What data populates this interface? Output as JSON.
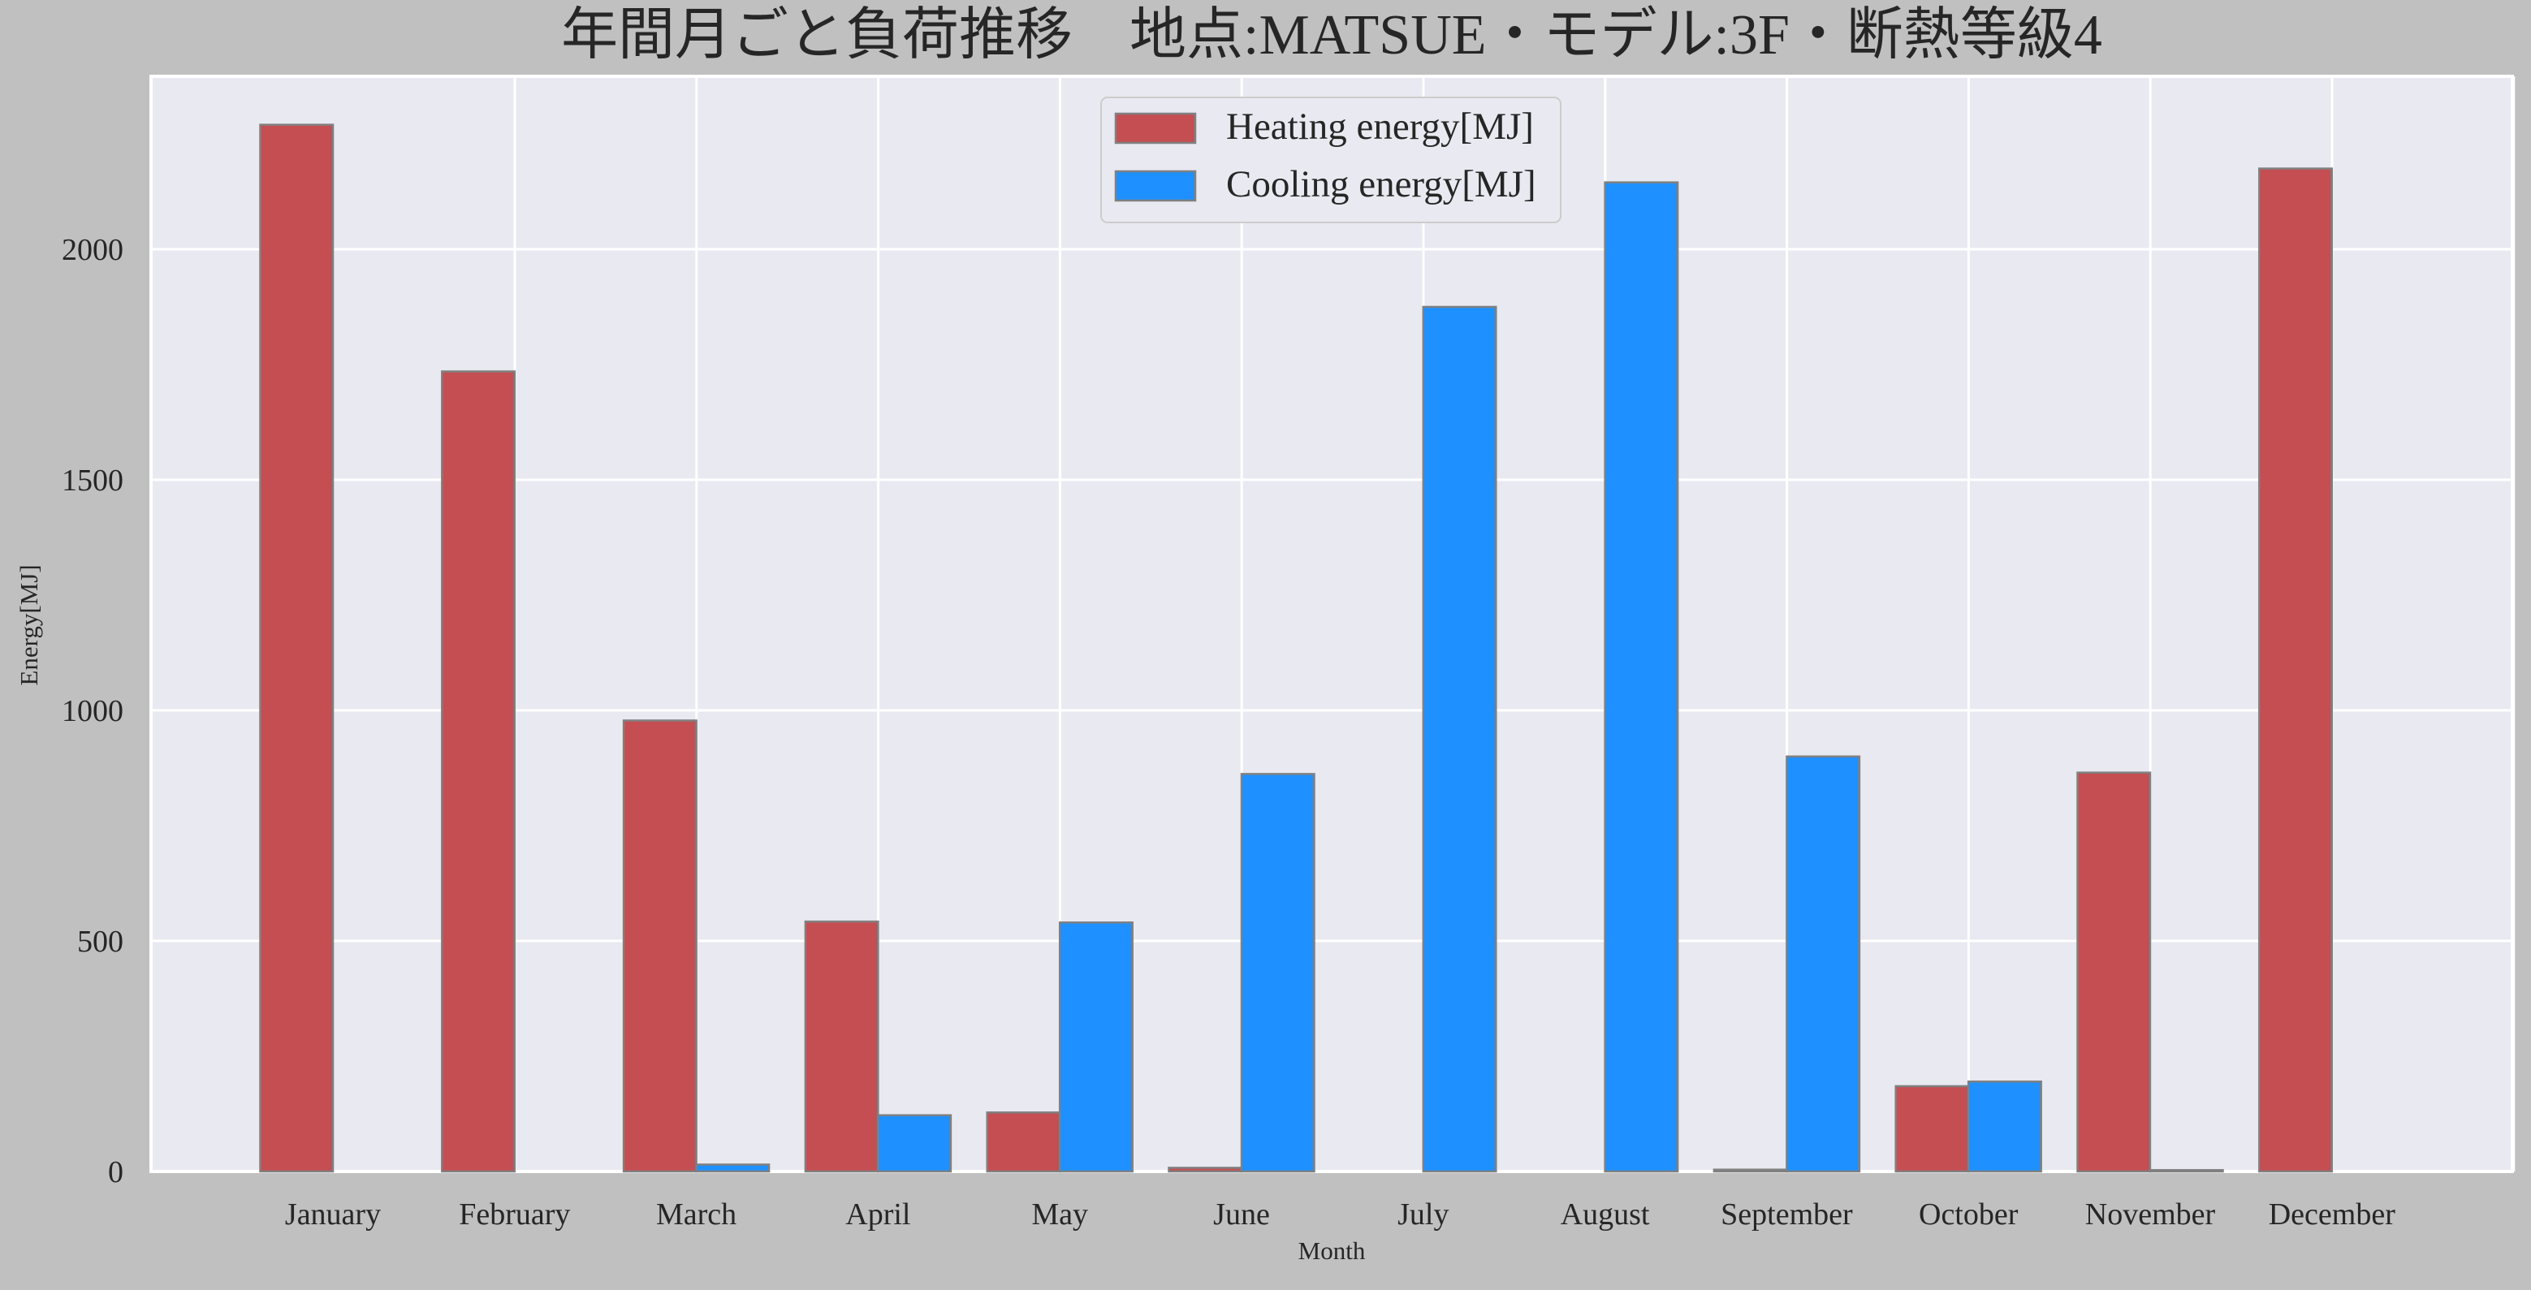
{
  "chart_data": {
    "type": "bar",
    "title": "年間月ごと負荷推移　地点:MATSUE・モデル:3F・断熱等級4",
    "xlabel": "Month",
    "ylabel": "Energy[MJ]",
    "categories": [
      "January",
      "February",
      "March",
      "April",
      "May",
      "June",
      "July",
      "August",
      "September",
      "October",
      "November",
      "December"
    ],
    "series": [
      {
        "name": "Heating energy[MJ]",
        "color": "#c44e52",
        "values": [
          2270,
          1735,
          978,
          542,
          128,
          8,
          0,
          0,
          4,
          185,
          865,
          2175
        ]
      },
      {
        "name": "Cooling energy[MJ]",
        "color": "#1e90ff",
        "values": [
          0,
          0,
          15,
          122,
          540,
          862,
          1875,
          2145,
          900,
          195,
          3,
          0
        ]
      }
    ],
    "ylim": [
      0,
      2375
    ],
    "yticks": [
      0,
      500,
      1000,
      1500,
      2000
    ],
    "grid": true,
    "legend_position": "top-center",
    "colors": {
      "figure_background": "#c0c0c0",
      "plot_background": "#e9e9f1",
      "grid": "#ffffff",
      "bar_edge": "#808080",
      "text": "#262626"
    }
  }
}
